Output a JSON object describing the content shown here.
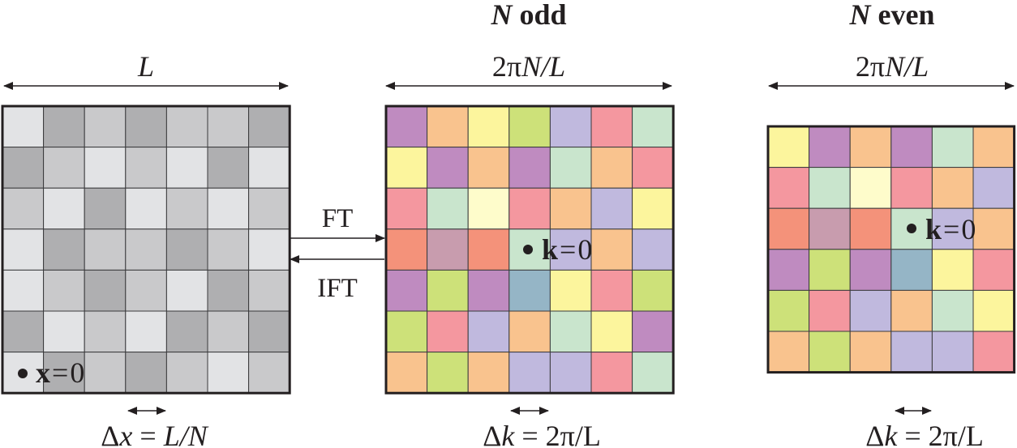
{
  "titles": {
    "odd": {
      "var": "N",
      "rest": " odd"
    },
    "even": {
      "var": "N",
      "rest": " even"
    }
  },
  "dims": {
    "real_width": "L",
    "k_width_odd": {
      "pre": "2π",
      "var": "N",
      "post": "/L"
    },
    "k_width_even": {
      "pre": "2π",
      "var": "N",
      "post": "/L"
    }
  },
  "arrows": {
    "forward": "FT",
    "inverse": "IFT"
  },
  "origins": {
    "real": {
      "var": "x",
      "eq": "=",
      "val": "0"
    },
    "k_odd": {
      "var": "k",
      "eq": "=",
      "val": "0"
    },
    "k_even": {
      "var": "k",
      "eq": "=",
      "val": "0"
    }
  },
  "spacing": {
    "real": {
      "delta": "Δ",
      "var": "x",
      "eq": " = ",
      "rhs": "L/N"
    },
    "k_odd": {
      "delta": "Δ",
      "var": "k",
      "eq": " = ",
      "rhs": "2π/L"
    },
    "k_even": {
      "delta": "Δ",
      "var": "k",
      "eq": " = ",
      "rhs": "2π/L"
    }
  },
  "grids": {
    "real": [
      [
        "#e2e3e5",
        "#afafb1",
        "#c9c9cb",
        "#afafb1",
        "#c9c9cb",
        "#c9c9cb",
        "#afafb1"
      ],
      [
        "#afafb1",
        "#c9c9cb",
        "#e2e3e5",
        "#c9c9cb",
        "#e2e3e5",
        "#afafb1",
        "#e2e3e5"
      ],
      [
        "#c9c9cb",
        "#e2e3e5",
        "#afafb1",
        "#e2e3e5",
        "#c9c9cb",
        "#e2e3e5",
        "#c9c9cb"
      ],
      [
        "#e2e3e5",
        "#afafb1",
        "#c9c9cb",
        "#c9c9cb",
        "#afafb1",
        "#c9c9cb",
        "#e2e3e5"
      ],
      [
        "#e2e3e5",
        "#c9c9cb",
        "#afafb1",
        "#c9c9cb",
        "#e2e3e5",
        "#afafb1",
        "#c9c9cb"
      ],
      [
        "#afafb1",
        "#e2e3e5",
        "#c9c9cb",
        "#e2e3e5",
        "#afafb1",
        "#c9c9cb",
        "#afafb1"
      ],
      [
        "#e2e3e5",
        "#afafb1",
        "#c9c9cb",
        "#afafb1",
        "#c9c9cb",
        "#e2e3e5",
        "#c9c9cb"
      ]
    ],
    "k_odd": [
      [
        "#bf8bc0",
        "#f9c38e",
        "#fcf59d",
        "#cde179",
        "#c0b9de",
        "#f4979f",
        "#c9e5cd"
      ],
      [
        "#fcf59d",
        "#bf8bc0",
        "#f9c38e",
        "#bf8bc0",
        "#c9e5cd",
        "#f9c38e",
        "#f4979f"
      ],
      [
        "#f4979f",
        "#c9e5cd",
        "#fefccb",
        "#f4979f",
        "#f9c38e",
        "#c0b9de",
        "#fcf59d"
      ],
      [
        "#f4927a",
        "#c89cae",
        "#f4927a",
        "#c9e5cd",
        "#c0b9de",
        "#f9c38e",
        "#c0b9de"
      ],
      [
        "#bf8bc0",
        "#cde179",
        "#bf8bc0",
        "#95b5c6",
        "#fcf59d",
        "#f4979f",
        "#cde179"
      ],
      [
        "#cde179",
        "#f4979f",
        "#c0b9de",
        "#f9c38e",
        "#c9e5cd",
        "#fcf59d",
        "#bf8bc0"
      ],
      [
        "#f9c38e",
        "#cde179",
        "#f9c38e",
        "#c0b9de",
        "#c0b9de",
        "#f4979f",
        "#c9e5cd"
      ]
    ],
    "k_even": [
      [
        "#fcf59d",
        "#bf8bc0",
        "#f9c38e",
        "#bf8bc0",
        "#c9e5cd",
        "#f9c38e"
      ],
      [
        "#f4979f",
        "#c9e5cd",
        "#fefccb",
        "#f4979f",
        "#f9c38e",
        "#c0b9de"
      ],
      [
        "#f4927a",
        "#c89cae",
        "#f4927a",
        "#c9e5cd",
        "#c0b9de",
        "#f9c38e"
      ],
      [
        "#bf8bc0",
        "#cde179",
        "#bf8bc0",
        "#95b5c6",
        "#fcf59d",
        "#f4979f"
      ],
      [
        "#cde179",
        "#f4979f",
        "#c0b9de",
        "#f9c38e",
        "#c9e5cd",
        "#fcf59d"
      ],
      [
        "#f9c38e",
        "#cde179",
        "#f9c38e",
        "#c0b9de",
        "#c0b9de",
        "#f4979f"
      ]
    ]
  }
}
